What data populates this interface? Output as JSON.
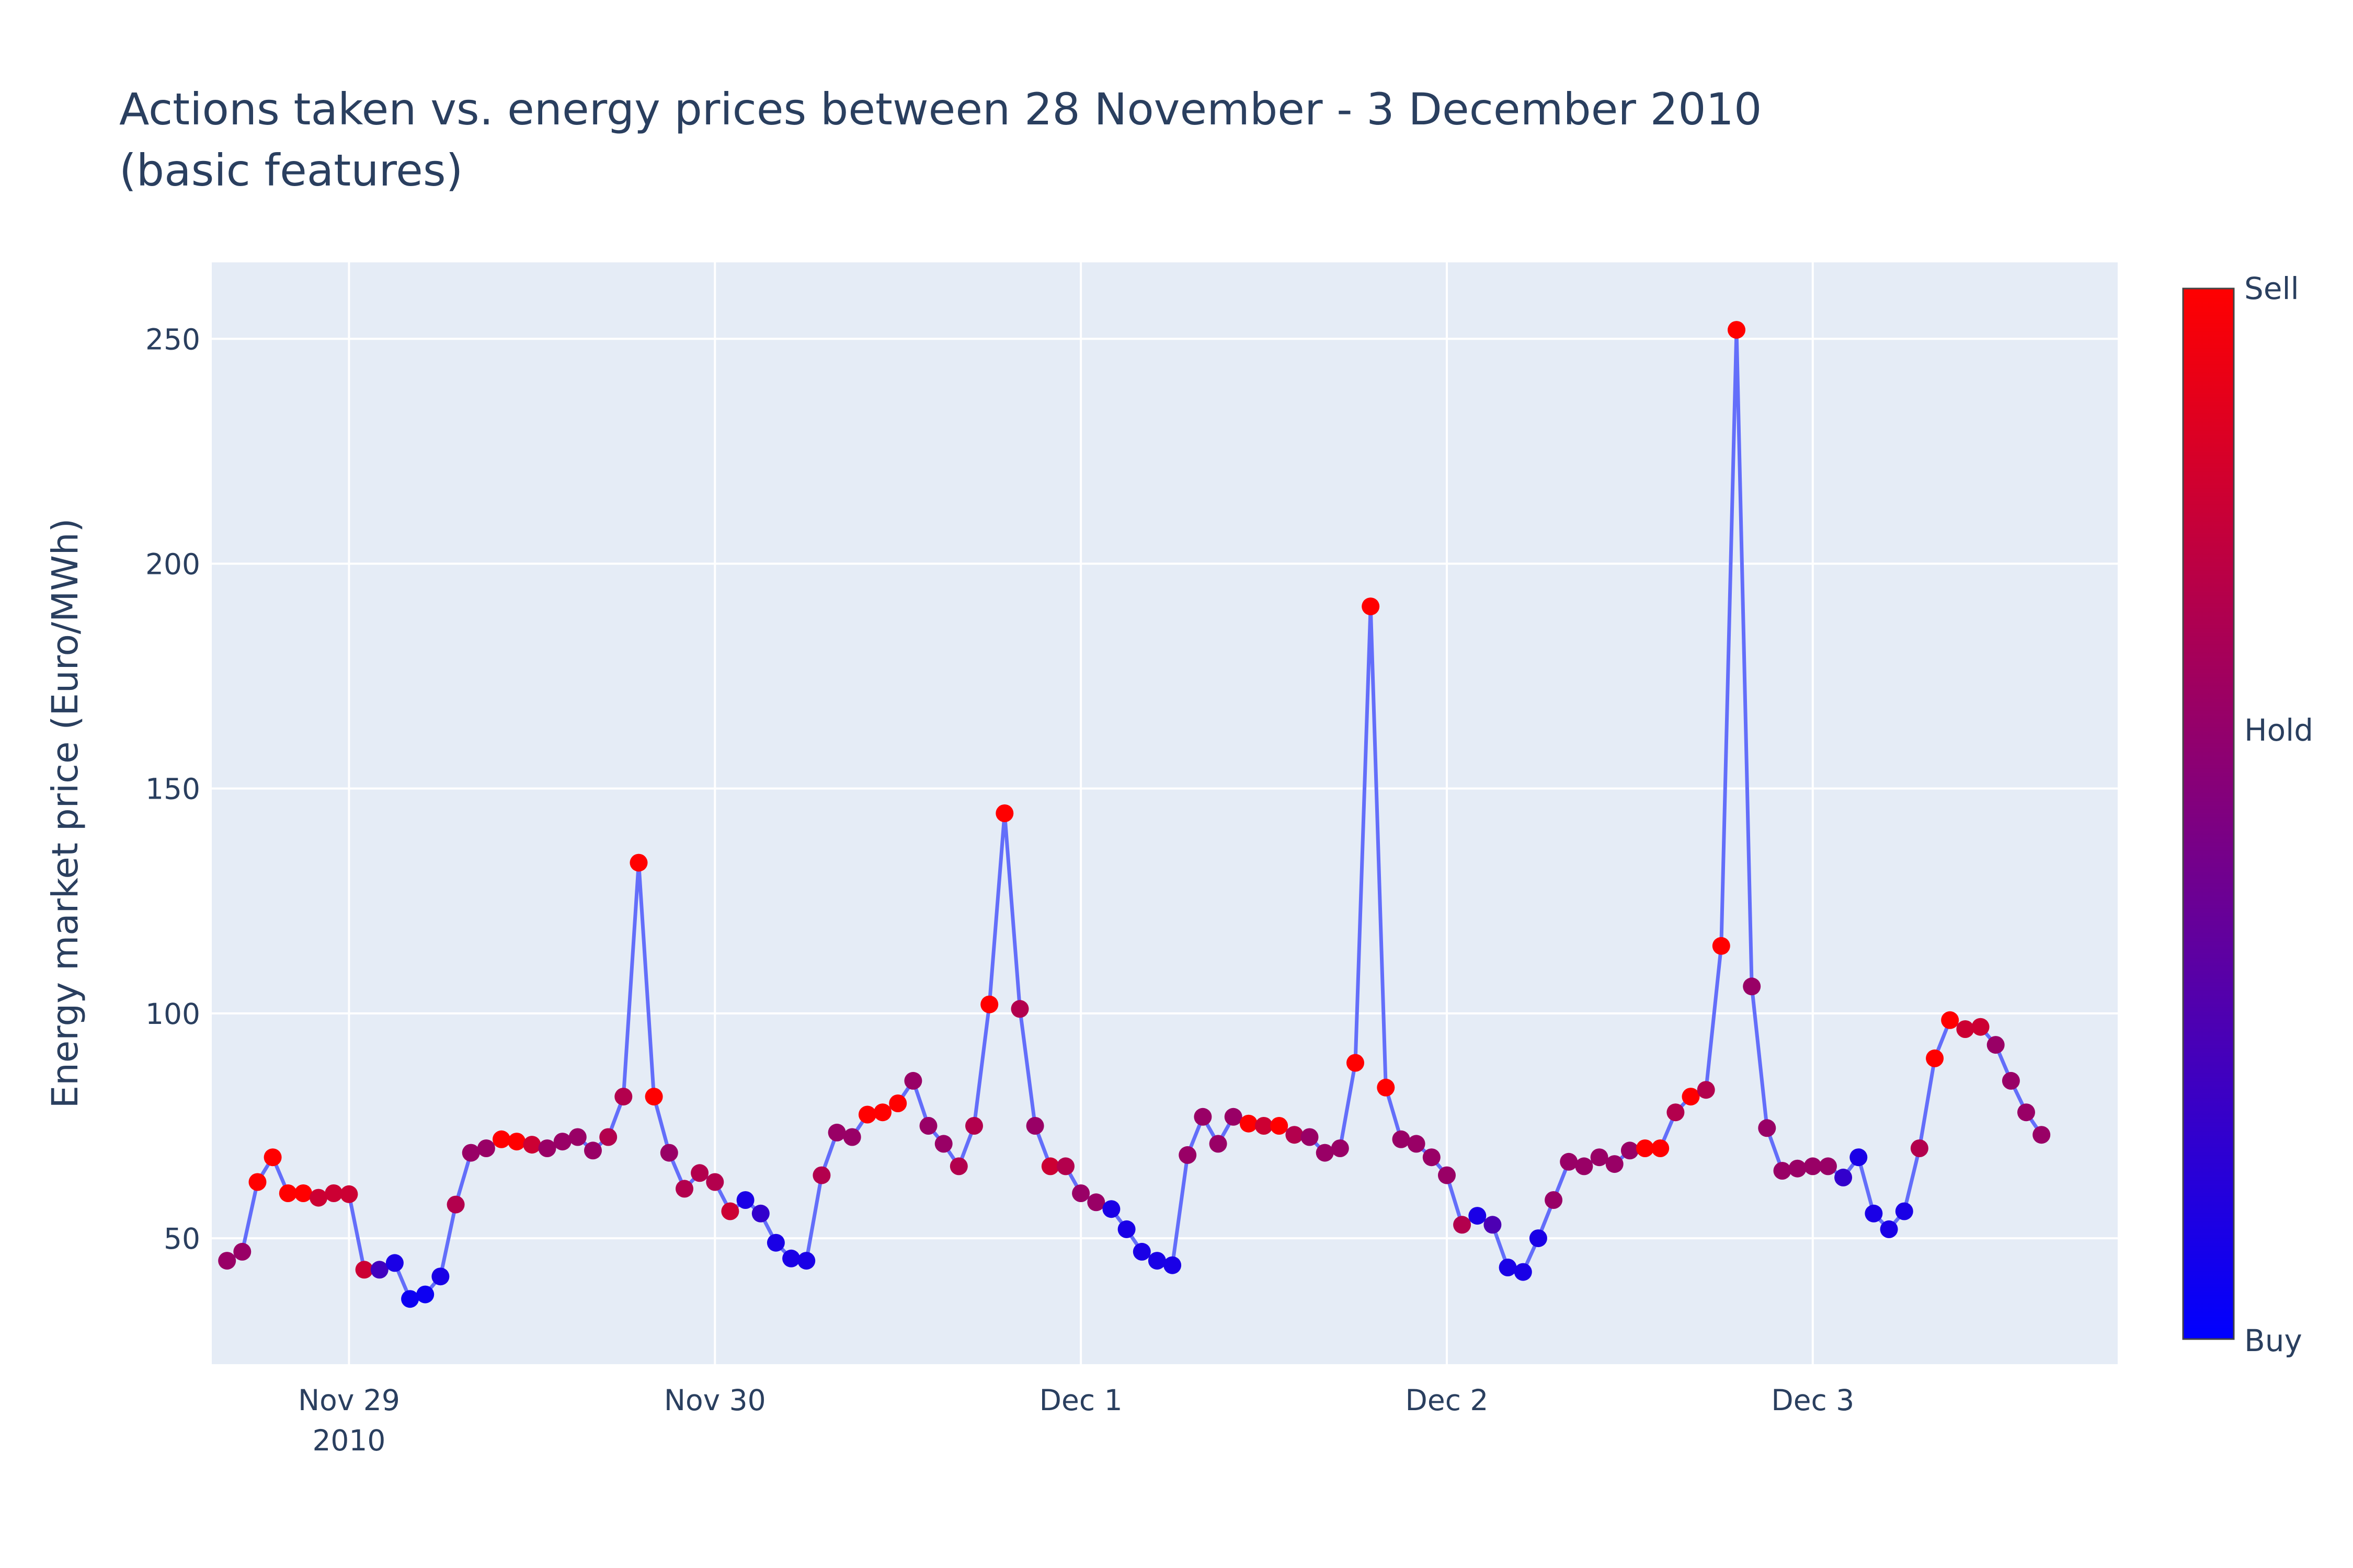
{
  "chart_data": {
    "type": "line",
    "title_line1": "Actions taken vs. energy prices between 28 November - 3 December 2010",
    "title_line2": "(basic features)",
    "ylabel": "Energy market price (Euro/MWh)",
    "xlabel": "",
    "ylim": [
      22,
      267
    ],
    "y_ticks": [
      50,
      100,
      150,
      200,
      250
    ],
    "x_start": "2010-11-28 15:00",
    "x_end": "2010-12-03 20:00",
    "x_ticks": [
      {
        "date": "2010-11-29 00:00",
        "label": "Nov 29",
        "sublabel": "2010"
      },
      {
        "date": "2010-11-30 00:00",
        "label": "Nov 30",
        "sublabel": ""
      },
      {
        "date": "2010-12-01 00:00",
        "label": "Dec 1",
        "sublabel": ""
      },
      {
        "date": "2010-12-02 00:00",
        "label": "Dec 2",
        "sublabel": ""
      },
      {
        "date": "2010-12-03 00:00",
        "label": "Dec 3",
        "sublabel": ""
      }
    ],
    "grid": true,
    "series": [
      {
        "start": "2010-11-28 16:00",
        "interval_hours": 1,
        "line_color": "#636efa",
        "values": [
          45,
          47,
          62.5,
          68,
          60,
          60,
          59,
          60,
          59.8,
          43,
          43,
          44.5,
          36.5,
          37.5,
          41.5,
          57.5,
          69,
          70,
          72,
          71.5,
          70.8,
          70,
          71.5,
          72.5,
          69.5,
          72.5,
          81.5,
          133.5,
          81.5,
          69,
          61,
          64.5,
          62.5,
          56,
          58.5,
          55.5,
          49,
          45.5,
          45,
          64,
          73.5,
          72.5,
          77.5,
          78,
          80,
          85,
          75,
          71,
          66,
          75,
          102,
          144.5,
          101,
          75,
          66,
          66,
          60,
          58,
          56.5,
          52,
          47,
          45,
          44,
          68.5,
          77,
          71,
          77,
          75.5,
          75,
          75,
          73,
          72.5,
          69,
          70,
          89,
          190.5,
          83.5,
          72,
          71,
          68,
          64,
          53,
          55,
          53,
          43.5,
          42.5,
          50,
          58.5,
          67,
          66,
          68,
          66.5,
          69.5,
          70,
          70,
          78,
          81.5,
          83,
          115,
          252,
          106,
          74.5,
          65,
          65.5,
          66,
          66,
          63.5,
          68,
          55.5,
          52,
          56,
          70,
          90,
          98.5,
          96.5,
          97,
          93,
          85,
          78,
          73
        ],
        "actions": [
          0.6,
          0.6,
          1,
          1,
          1,
          1,
          0.8,
          0.8,
          0.8,
          0.8,
          0.25,
          0.1,
          0.05,
          0.05,
          0.1,
          0.7,
          0.6,
          0.6,
          1,
          1,
          0.8,
          0.6,
          0.6,
          0.6,
          0.6,
          0.7,
          0.7,
          1,
          1,
          0.6,
          0.7,
          0.7,
          0.7,
          0.8,
          0.1,
          0.2,
          0.1,
          0.1,
          0.1,
          0.7,
          0.6,
          0.6,
          1,
          1,
          1,
          0.6,
          0.6,
          0.6,
          0.7,
          0.7,
          1,
          1,
          0.7,
          0.6,
          0.8,
          0.7,
          0.6,
          0.6,
          0.1,
          0.1,
          0.1,
          0.1,
          0.1,
          0.6,
          0.6,
          0.6,
          0.6,
          1,
          0.8,
          1,
          0.7,
          0.6,
          0.6,
          0.6,
          1,
          1,
          1,
          0.6,
          0.6,
          0.6,
          0.6,
          0.7,
          0.1,
          0.3,
          0.1,
          0.1,
          0.1,
          0.6,
          0.6,
          0.6,
          0.6,
          0.6,
          0.6,
          1,
          1,
          0.7,
          1,
          0.7,
          1,
          1,
          0.6,
          0.6,
          0.6,
          0.6,
          0.6,
          0.6,
          0.2,
          0.1,
          0.1,
          0.1,
          0.1,
          0.7,
          1,
          1,
          0.8,
          0.8,
          0.6,
          0.6,
          0.6,
          0.6
        ]
      }
    ],
    "colorbar": {
      "title": "",
      "tick_labels": [
        "Buy",
        "Hold",
        "Sell"
      ],
      "color_low": "#0000ff",
      "color_high": "#ff0000"
    }
  }
}
